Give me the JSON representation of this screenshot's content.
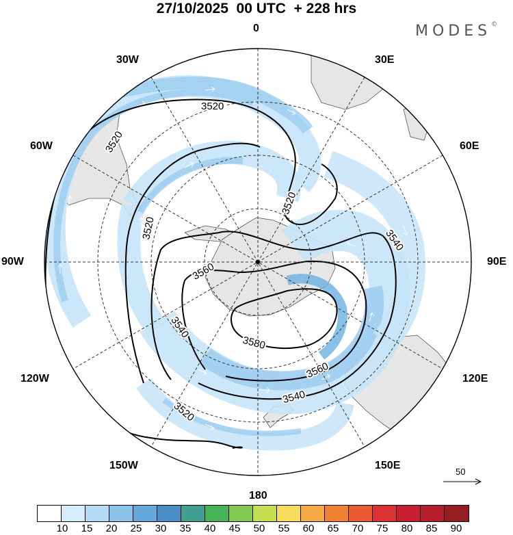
{
  "title": "27/10/2025  00 UTC  + 228 hrs",
  "brand": "MODES",
  "brand_mark": "©",
  "longitude_labels": {
    "lon_0": "0",
    "lon_30e": "30E",
    "lon_60e": "60E",
    "lon_90e": "90E",
    "lon_120e": "120E",
    "lon_150e": "150E",
    "lon_180": "180",
    "lon_150w": "150W",
    "lon_120w": "120W",
    "lon_90w": "90W",
    "lon_60w": "60W",
    "lon_30w": "30W"
  },
  "contours": {
    "c3520_a": "3520",
    "c3520_b": "3520",
    "c3520_c": "3520",
    "c3520_d": "3520",
    "c3540_a": "3540",
    "c3540_b": "3540",
    "c3540_c": "3540",
    "c3560_a": "3560",
    "c3560_b": "3560",
    "c3580": "3580"
  },
  "wind_reference": {
    "value": "50"
  },
  "colorbar": {
    "colors": [
      "#ffffff",
      "#d6eefb",
      "#b4dcf5",
      "#8cc4ec",
      "#64a8dc",
      "#4a8ec8",
      "#3fa090",
      "#46b456",
      "#80c850",
      "#c4dc50",
      "#f5dc5a",
      "#f5aa46",
      "#f08232",
      "#eb5a32",
      "#dc3232",
      "#c81e32",
      "#b41e2d",
      "#961e23"
    ],
    "ticks": [
      "10",
      "15",
      "20",
      "25",
      "30",
      "35",
      "40",
      "45",
      "50",
      "55",
      "60",
      "65",
      "70",
      "75",
      "80",
      "85",
      "90"
    ]
  },
  "colors": {
    "land": "#e6e6e6",
    "coast": "#555555",
    "shade_light": "#c6e4f8",
    "shade_mid": "#9ccdf0",
    "shade_dark": "#6cb0e2"
  }
}
